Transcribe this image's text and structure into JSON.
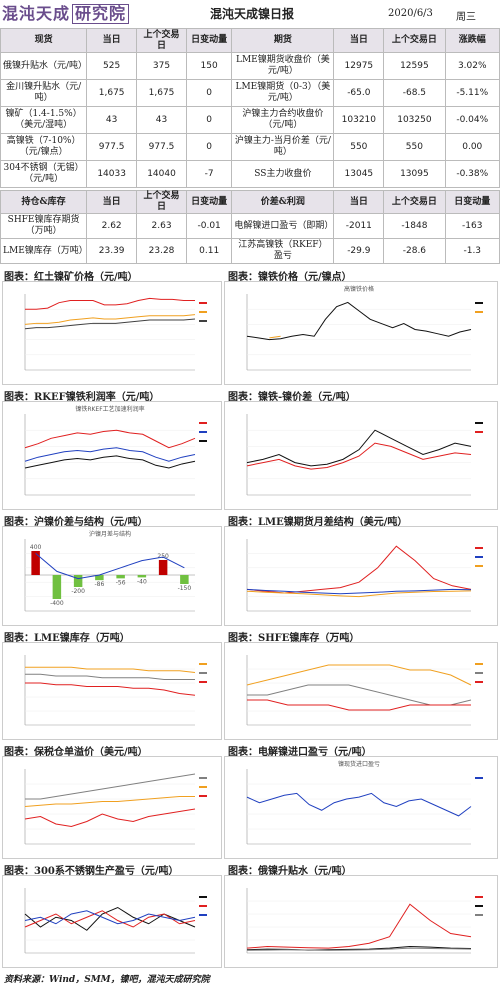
{
  "header": {
    "logo_text": "混沌天成",
    "logo_box": "研究院",
    "title": "混沌天成镍日报",
    "date": "2020/6/3",
    "weekday": "周三"
  },
  "table1": {
    "headers": [
      "现货",
      "当日",
      "上个交易日",
      "日变动量",
      "期货",
      "当日",
      "上个交易日",
      "涨跌幅"
    ],
    "rows": [
      [
        "俄镍升贴水（元/吨）",
        "525",
        "375",
        "150",
        "LME镍期货收盘价（美元/吨）",
        "12975",
        "12595",
        "3.02%"
      ],
      [
        "金川镍升贴水（元/吨）",
        "1,675",
        "1,675",
        "0",
        "LME镍期货（0-3）（美元/吨）",
        "-65.0",
        "-68.5",
        "-5.11%"
      ],
      [
        "镍矿（1.4-1.5%）（美元/湿吨）",
        "43",
        "43",
        "0",
        "沪镍主力合约收盘价（元/吨）",
        "103210",
        "103250",
        "-0.04%"
      ],
      [
        "高镍铁（7-10%）（元/镍点）",
        "977.5",
        "977.5",
        "0",
        "沪镍主力-当月价差（元/吨）",
        "550",
        "550",
        "0.00"
      ],
      [
        "304不锈钢（无锡）（元/吨）",
        "14033",
        "14040",
        "-7",
        "SS主力收盘价",
        "13045",
        "13095",
        "-0.38%"
      ]
    ]
  },
  "table2": {
    "headers": [
      "持仓&库存",
      "当日",
      "上个交易日",
      "日变动量",
      "价差&利润",
      "当日",
      "上个交易日",
      "日变动量"
    ],
    "rows": [
      [
        "SHFE镍库存期货（万吨）",
        "2.62",
        "2.63",
        "-0.01",
        "电解镍进口盈亏（即期）",
        "-2011",
        "-1848",
        "-163"
      ],
      [
        "LME镍库存（万吨）",
        "23.39",
        "23.28",
        "0.11",
        "江苏高镍铁（RKEF）盈亏",
        "-29.9",
        "-28.6",
        "-1.3"
      ]
    ]
  },
  "sections": [
    "图表：红土镍矿价格（元/吨）",
    "图表：镍铁价格（元/镍点）",
    "图表：RKEF镍铁利润率（元/吨）",
    "图表：镍铁-镍价差（元/吨）",
    "图表：沪镍价差与结构（元/吨）",
    "图表：LME镍期货月差结构（美元/吨）",
    "图表：LME镍库存（万吨）",
    "图表：SHFE镍库存（万吨）",
    "图表：保税仓单溢价（美元/吨）",
    "图表：电解镍进口盈亏（元/吨）",
    "图表：300系不锈钢生产盈亏（元/吨）",
    "图表：俄镍升贴水（元/吨）"
  ],
  "chart_titles": {
    "c2": "高镍铁价格",
    "c3": "镍铁RKEF工艺加速利润率",
    "c5": "沪镍月差与结构",
    "c10": "镍现货进口盈亏"
  },
  "footer": "资料来源：Wind，SMM，镍吧，混沌天成研究院",
  "chart_data": [
    {
      "id": "c1",
      "type": "line",
      "series": [
        {
          "color": "#e02020",
          "values": [
            560,
            560,
            570,
            620,
            640,
            640,
            640,
            600,
            600,
            610,
            640,
            660,
            650,
            650,
            640,
            640
          ]
        },
        {
          "color": "#f0a020",
          "values": [
            420,
            430,
            430,
            440,
            460,
            470,
            480,
            470,
            470,
            480,
            490,
            500,
            500,
            500,
            500,
            510
          ]
        },
        {
          "color": "#404040",
          "values": [
            380,
            390,
            390,
            400,
            410,
            420,
            430,
            430,
            430,
            440,
            450,
            460,
            460,
            460,
            460,
            470
          ]
        }
      ],
      "ylim": [
        0,
        700
      ]
    },
    {
      "id": "c2",
      "type": "line",
      "series": [
        {
          "color": "#111",
          "values": [
            900,
            880,
            860,
            870,
            900,
            920,
            900,
            1100,
            1250,
            1300,
            1200,
            1100,
            1050,
            1000,
            1050,
            980,
            960,
            930,
            900,
            950,
            980
          ]
        },
        {
          "color": "#f0a020",
          "values": [
            null,
            null,
            880,
            900,
            null,
            null,
            null,
            null,
            null,
            null,
            null,
            null,
            null,
            null,
            null,
            null,
            null,
            null,
            null,
            null,
            null
          ]
        }
      ],
      "ylim": [
        500,
        1400
      ]
    },
    {
      "id": "c3",
      "type": "line",
      "series": [
        {
          "color": "#e02020",
          "values": [
            15,
            18,
            22,
            24,
            26,
            25,
            27,
            28,
            26,
            25,
            20,
            15,
            18,
            22
          ]
        },
        {
          "color": "#2040c0",
          "values": [
            5,
            8,
            10,
            12,
            13,
            12,
            14,
            15,
            13,
            12,
            8,
            5,
            8,
            10
          ]
        },
        {
          "color": "#111",
          "values": [
            0,
            2,
            4,
            6,
            7,
            6,
            8,
            9,
            7,
            6,
            2,
            0,
            3,
            5
          ]
        }
      ],
      "ylim": [
        -20,
        40
      ]
    },
    {
      "id": "c4",
      "type": "line",
      "series": [
        {
          "color": "#111",
          "values": [
            10,
            12,
            15,
            10,
            8,
            9,
            12,
            18,
            30,
            25,
            20,
            15,
            18,
            22,
            20
          ]
        },
        {
          "color": "#e02020",
          "values": [
            8,
            10,
            12,
            8,
            6,
            7,
            10,
            14,
            22,
            20,
            16,
            12,
            14,
            16,
            15
          ]
        }
      ],
      "ylim": [
        -10,
        40
      ]
    },
    {
      "id": "c5",
      "type": "bar",
      "categories": [
        "1",
        "2",
        "3",
        "4",
        "5",
        "6",
        "7",
        "8"
      ],
      "values": [
        400,
        -400,
        -200,
        -86,
        -56,
        -40,
        250,
        -150
      ],
      "ylim": [
        -600,
        600
      ]
    },
    {
      "id": "c6",
      "type": "line",
      "series": [
        {
          "color": "#e02020",
          "values": [
            0,
            -5,
            -10,
            -5,
            0,
            5,
            20,
            60,
            120,
            80,
            30,
            10,
            0
          ]
        },
        {
          "color": "#2040c0",
          "values": [
            0,
            -3,
            -5,
            -8,
            -10,
            -12,
            -10,
            -8,
            -5,
            -4,
            -2,
            0,
            -1
          ]
        },
        {
          "color": "#f0a020",
          "values": [
            -5,
            -8,
            -10,
            -12,
            -15,
            -18,
            -20,
            -15,
            -10,
            -8,
            -6,
            -5,
            -4
          ]
        }
      ],
      "ylim": [
        -60,
        140
      ]
    },
    {
      "id": "c7",
      "type": "line",
      "series": [
        {
          "color": "#f0a020",
          "values": [
            33,
            33,
            33,
            33,
            32,
            32,
            32,
            32,
            31,
            31,
            31,
            30
          ]
        },
        {
          "color": "#808080",
          "values": [
            29,
            29,
            28,
            28,
            28,
            27,
            27,
            27,
            27,
            26,
            26,
            26
          ]
        },
        {
          "color": "#e02020",
          "values": [
            24,
            24,
            23,
            23,
            22,
            22,
            22,
            21,
            21,
            20,
            18,
            17
          ]
        }
      ],
      "ylim": [
        0,
        40
      ]
    },
    {
      "id": "c8",
      "type": "line",
      "series": [
        {
          "color": "#f0a020",
          "values": [
            8,
            9,
            10,
            11,
            12,
            12,
            12,
            12,
            11,
            11,
            10,
            8
          ]
        },
        {
          "color": "#808080",
          "values": [
            6,
            6,
            7,
            8,
            8,
            8,
            7,
            6,
            5,
            4,
            4,
            5
          ]
        },
        {
          "color": "#e02020",
          "values": [
            5,
            5,
            4,
            4,
            4,
            3,
            3,
            3,
            4,
            4,
            4,
            4
          ]
        }
      ],
      "ylim": [
        0,
        14
      ]
    },
    {
      "id": "c9",
      "type": "line",
      "series": [
        {
          "color": "#808080",
          "values": [
            180,
            180,
            190,
            200,
            210,
            220,
            230,
            240,
            250,
            260,
            270,
            280
          ]
        },
        {
          "color": "#f0a020",
          "values": [
            150,
            155,
            160,
            160,
            165,
            170,
            170,
            175,
            180,
            185,
            190,
            190
          ]
        },
        {
          "color": "#e02020",
          "values": [
            100,
            110,
            80,
            70,
            90,
            120,
            100,
            90,
            110,
            120,
            130,
            140
          ]
        }
      ],
      "ylim": [
        0,
        300
      ]
    },
    {
      "id": "c10",
      "type": "line",
      "series": [
        {
          "color": "#2040c0",
          "values": [
            -500,
            -800,
            -600,
            -400,
            -300,
            -900,
            -1200,
            -800,
            -600,
            -500,
            -300,
            -800,
            -1000,
            -700,
            -600,
            -900,
            -1200,
            -1500,
            -1000
          ]
        }
      ],
      "ylim": [
        -3000,
        1000
      ]
    },
    {
      "id": "c11",
      "type": "line",
      "series": [
        {
          "color": "#111",
          "values": [
            2,
            -2,
            1,
            0,
            -3,
            2,
            4,
            1,
            -1,
            2,
            0,
            -2
          ]
        },
        {
          "color": "#e02020",
          "values": [
            -2,
            0,
            2,
            -1,
            1,
            3,
            0,
            -2,
            1,
            2,
            -1,
            0
          ]
        },
        {
          "color": "#2040c0",
          "values": [
            0,
            1,
            -1,
            2,
            3,
            1,
            -1,
            0,
            2,
            1,
            0,
            1
          ]
        }
      ],
      "ylim": [
        -10,
        10
      ]
    },
    {
      "id": "c12",
      "type": "line",
      "series": [
        {
          "color": "#e02020",
          "values": [
            150,
            200,
            180,
            160,
            150,
            200,
            300,
            500,
            1500,
            1000,
            600,
            500
          ]
        },
        {
          "color": "#111",
          "values": [
            100,
            120,
            110,
            90,
            100,
            110,
            120,
            150,
            200,
            180,
            150,
            140
          ]
        },
        {
          "color": "#808080",
          "values": [
            80,
            90,
            100,
            90,
            80,
            90,
            100,
            120,
            150,
            140,
            130,
            120
          ]
        }
      ],
      "ylim": [
        0,
        2000
      ]
    }
  ]
}
